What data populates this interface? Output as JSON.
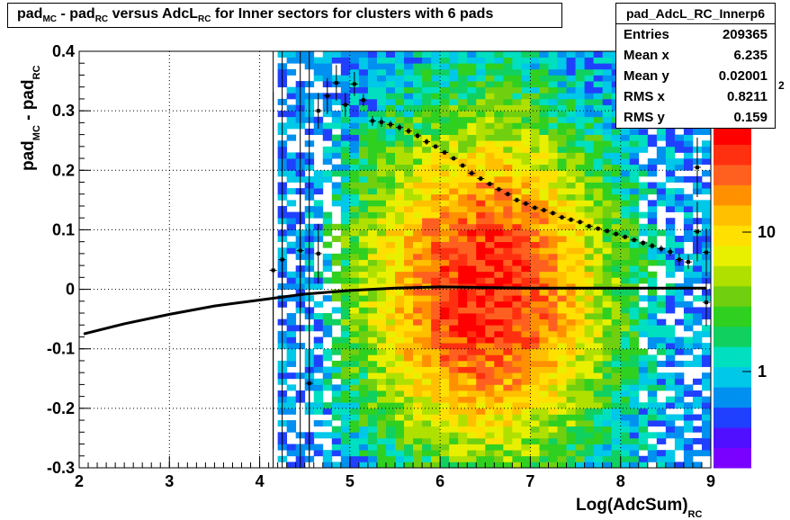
{
  "title": {
    "p1": "pad",
    "s1": "MC",
    "p2": " - pad",
    "s2": "RC",
    "p3": " versus AdcL",
    "s3": "RC",
    "p4": " for Inner sectors for clusters with 6 pads"
  },
  "stats": {
    "name": "pad_AdcL_RC_Innerp6",
    "rows": [
      {
        "label": "Entries",
        "value": "209365"
      },
      {
        "label": "Mean x",
        "value": "6.235"
      },
      {
        "label": "Mean y",
        "value": "0.02001"
      },
      {
        "label": "RMS x",
        "value": "0.8211"
      },
      {
        "label": "RMS y",
        "value": "0.159"
      }
    ]
  },
  "chart_data": {
    "type": "heatmap",
    "xlabel_main": "Log(AdcSum)",
    "xlabel_sub": "RC",
    "ylabel_main": "pad",
    "ylabel_sub1": "MC",
    "ylabel_mid": " - pad",
    "ylabel_sub2": "RC",
    "xlim": [
      2,
      9
    ],
    "ylim": [
      -0.3,
      0.4
    ],
    "xticks": [
      "2",
      "3",
      "4",
      "5",
      "6",
      "7",
      "8",
      "9"
    ],
    "yticks": [
      "-0.3",
      "-0.2",
      "-0.1",
      "0",
      "0.1",
      "0.2",
      "0.3",
      "0.4"
    ],
    "zscale": "log",
    "zticks": [
      "1",
      "10"
    ],
    "zexp": "2",
    "colors": {
      "axis": "#000000",
      "palette": [
        "#7a00ff",
        "#5010ff",
        "#2040ff",
        "#0090f0",
        "#00c8e8",
        "#00e0c0",
        "#10d060",
        "#30d020",
        "#70d010",
        "#b0e000",
        "#e8f000",
        "#ffe000",
        "#ffc000",
        "#ff9000",
        "#ff6020",
        "#ff3010",
        "#ff0000"
      ]
    },
    "heatmap": {
      "xbins": 70,
      "ybins": 70,
      "center_x": 6.5,
      "center_y": 0.0,
      "sigma_x": 0.8,
      "sigma_y": 0.13,
      "density": 1.0,
      "x_start": 4.25
    },
    "mean_profile": [
      {
        "x": 2.05,
        "y": -0.075
      },
      {
        "x": 2.5,
        "y": -0.058
      },
      {
        "x": 3.0,
        "y": -0.042
      },
      {
        "x": 3.5,
        "y": -0.028
      },
      {
        "x": 4.0,
        "y": -0.018
      },
      {
        "x": 4.5,
        "y": -0.008
      },
      {
        "x": 5.0,
        "y": -0.002
      },
      {
        "x": 5.5,
        "y": 0.002
      },
      {
        "x": 6.0,
        "y": 0.004
      },
      {
        "x": 6.5,
        "y": 0.003
      },
      {
        "x": 7.0,
        "y": 0.002
      },
      {
        "x": 7.5,
        "y": 0.002
      },
      {
        "x": 8.0,
        "y": 0.002
      },
      {
        "x": 8.5,
        "y": 0.002
      },
      {
        "x": 8.95,
        "y": 0.002
      }
    ],
    "profile_points": [
      {
        "x": 4.15,
        "y": 0.032,
        "e": 0.3
      },
      {
        "x": 4.25,
        "y": 0.05,
        "e": 0.08
      },
      {
        "x": 4.45,
        "y": 0.065,
        "e": 0.1
      },
      {
        "x": 4.55,
        "y": -0.158,
        "e": 0.12
      },
      {
        "x": 4.65,
        "y": 0.06,
        "e": 0.05
      },
      {
        "x": 4.65,
        "y": 0.3,
        "e": 0.03
      },
      {
        "x": 4.75,
        "y": 0.325,
        "e": 0.03
      },
      {
        "x": 4.85,
        "y": 0.347,
        "e": 0.03
      },
      {
        "x": 4.95,
        "y": 0.31,
        "e": 0.02
      },
      {
        "x": 5.05,
        "y": 0.345,
        "e": 0.02
      },
      {
        "x": 5.15,
        "y": 0.318,
        "e": 0.01
      },
      {
        "x": 5.25,
        "y": 0.283,
        "e": 0.008
      },
      {
        "x": 5.35,
        "y": 0.281,
        "e": 0.008
      },
      {
        "x": 5.45,
        "y": 0.277,
        "e": 0.006
      },
      {
        "x": 5.55,
        "y": 0.272,
        "e": 0.006
      },
      {
        "x": 5.65,
        "y": 0.266,
        "e": 0.005
      },
      {
        "x": 5.75,
        "y": 0.258,
        "e": 0.005
      },
      {
        "x": 5.85,
        "y": 0.248,
        "e": 0.005
      },
      {
        "x": 5.95,
        "y": 0.24,
        "e": 0.004
      },
      {
        "x": 6.05,
        "y": 0.23,
        "e": 0.004
      },
      {
        "x": 6.15,
        "y": 0.22,
        "e": 0.004
      },
      {
        "x": 6.25,
        "y": 0.208,
        "e": 0.004
      },
      {
        "x": 6.35,
        "y": 0.195,
        "e": 0.004
      },
      {
        "x": 6.45,
        "y": 0.186,
        "e": 0.004
      },
      {
        "x": 6.55,
        "y": 0.177,
        "e": 0.004
      },
      {
        "x": 6.65,
        "y": 0.168,
        "e": 0.004
      },
      {
        "x": 6.75,
        "y": 0.16,
        "e": 0.004
      },
      {
        "x": 6.85,
        "y": 0.15,
        "e": 0.004
      },
      {
        "x": 6.95,
        "y": 0.144,
        "e": 0.004
      },
      {
        "x": 7.05,
        "y": 0.137,
        "e": 0.004
      },
      {
        "x": 7.15,
        "y": 0.133,
        "e": 0.004
      },
      {
        "x": 7.25,
        "y": 0.128,
        "e": 0.004
      },
      {
        "x": 7.35,
        "y": 0.121,
        "e": 0.004
      },
      {
        "x": 7.45,
        "y": 0.117,
        "e": 0.004
      },
      {
        "x": 7.55,
        "y": 0.113,
        "e": 0.004
      },
      {
        "x": 7.65,
        "y": 0.106,
        "e": 0.004
      },
      {
        "x": 7.75,
        "y": 0.102,
        "e": 0.004
      },
      {
        "x": 7.85,
        "y": 0.098,
        "e": 0.004
      },
      {
        "x": 7.95,
        "y": 0.093,
        "e": 0.004
      },
      {
        "x": 8.05,
        "y": 0.088,
        "e": 0.004
      },
      {
        "x": 8.15,
        "y": 0.083,
        "e": 0.004
      },
      {
        "x": 8.25,
        "y": 0.078,
        "e": 0.005
      },
      {
        "x": 8.35,
        "y": 0.073,
        "e": 0.005
      },
      {
        "x": 8.45,
        "y": 0.068,
        "e": 0.006
      },
      {
        "x": 8.55,
        "y": 0.063,
        "e": 0.007
      },
      {
        "x": 8.65,
        "y": 0.05,
        "e": 0.01
      },
      {
        "x": 8.75,
        "y": 0.046,
        "e": 0.012
      },
      {
        "x": 8.85,
        "y": 0.205,
        "e": 0.05
      },
      {
        "x": 8.85,
        "y": 0.097,
        "e": 0.05
      },
      {
        "x": 8.95,
        "y": -0.022,
        "e": 0.04
      },
      {
        "x": 8.95,
        "y": 0.062,
        "e": 0.04
      }
    ],
    "error_lines": [
      4.15,
      4.25,
      4.45,
      4.55
    ]
  }
}
